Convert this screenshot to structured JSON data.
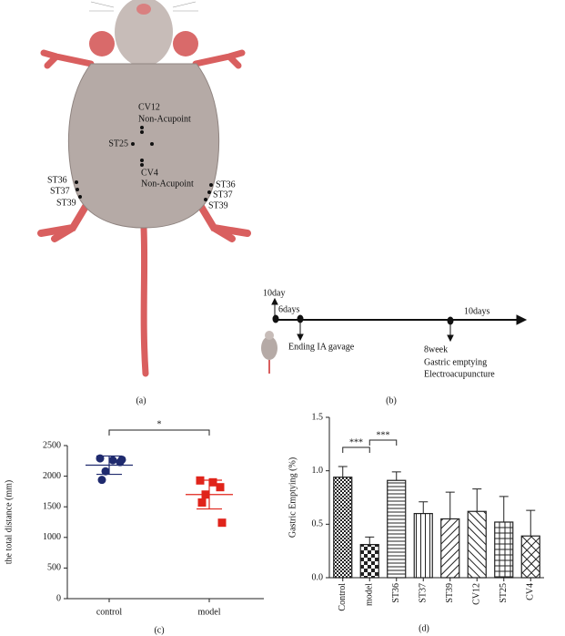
{
  "diagram": {
    "panel_label": "(a)",
    "center_labels": [
      "CV12",
      "Non-Acupoint",
      "ST25",
      "CV4",
      "Non-Acupoint"
    ],
    "left_labels": [
      "ST36",
      "ST37",
      "ST39"
    ],
    "right_labels": [
      "ST36",
      "ST37",
      "ST39"
    ]
  },
  "timeline": {
    "panel_label": "(b)",
    "start": "10day",
    "gavage_days": "6days",
    "gavage_end": "Ending IA gavage",
    "ea_days": "10days",
    "week": "8week",
    "events": [
      "Gastric emptying",
      "Electroacupuncture"
    ]
  },
  "chart_data": [
    {
      "type": "strip",
      "panel_label": "(c)",
      "y_label": "the total distance (mm)",
      "categories": [
        "control",
        "model"
      ],
      "values": [
        [
          2290,
          2260,
          2230,
          2080,
          1940,
          2270
        ],
        [
          1930,
          1900,
          1820,
          1700,
          1570,
          1240
        ]
      ],
      "means": [
        2180,
        1700
      ],
      "sd": [
        150,
        235
      ],
      "colors": [
        "#1f2a6e",
        "#e0241b"
      ],
      "markers": [
        "circle",
        "square"
      ],
      "ylim": [
        0,
        2500
      ],
      "yticks": [
        0,
        500,
        1000,
        1500,
        2000,
        2500
      ],
      "annotations": [
        {
          "text": "*",
          "from": 0,
          "to": 1
        }
      ]
    },
    {
      "type": "bar",
      "panel_label": "(d)",
      "y_label": "Gastric Emptying (%)",
      "categories": [
        "Control",
        "model",
        "ST36",
        "ST37",
        "ST39",
        "CV12",
        "ST25",
        "CV4"
      ],
      "values": [
        0.94,
        0.31,
        0.91,
        0.6,
        0.55,
        0.62,
        0.52,
        0.39
      ],
      "errors": [
        0.1,
        0.07,
        0.08,
        0.11,
        0.25,
        0.21,
        0.24,
        0.24
      ],
      "color": "#222222",
      "patterns": [
        "checker-dense",
        "checker",
        "hlines",
        "vlines",
        "diag",
        "diag-back",
        "grid",
        "diag-cross"
      ],
      "ylim": [
        0,
        1.5
      ],
      "yticks": [
        {
          "value": 0,
          "label": "0.0"
        },
        0.5,
        {
          "value": 1,
          "label": "1.0"
        },
        1.5
      ],
      "annotations": [
        {
          "text": "***",
          "from": 0,
          "to": 1
        },
        {
          "text": "***",
          "from": 1,
          "to": 2
        }
      ]
    }
  ]
}
